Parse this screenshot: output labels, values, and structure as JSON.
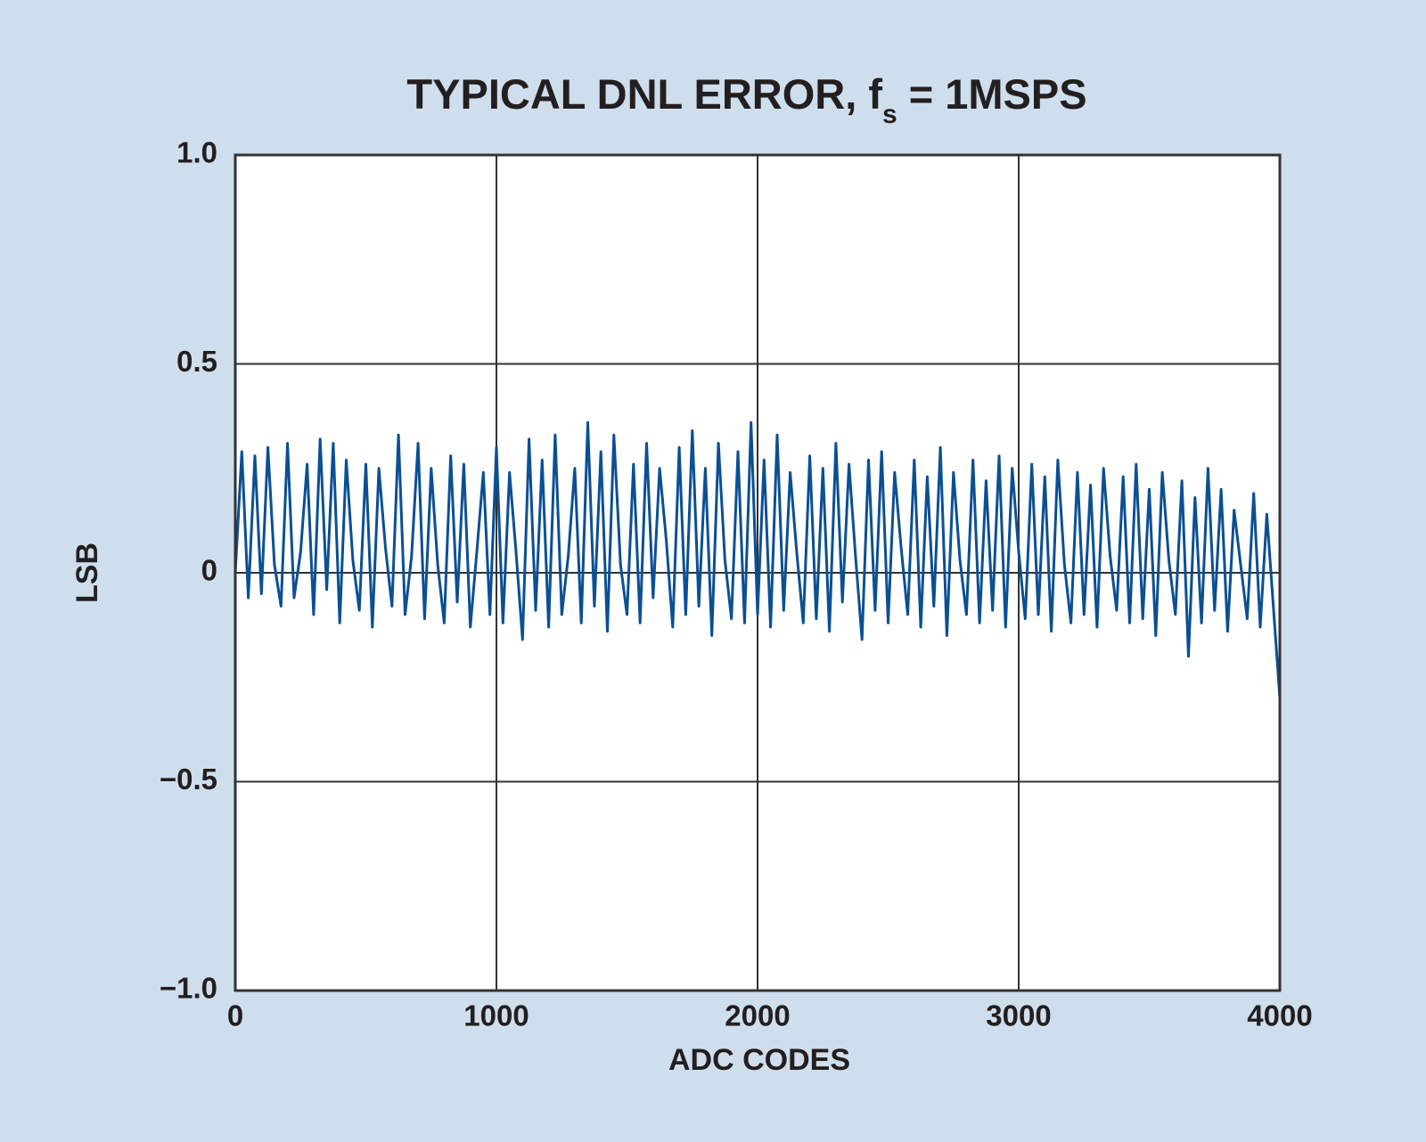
{
  "chart_data": {
    "type": "line",
    "title_parts": [
      "TYPICAL DNL ERROR, f",
      "s",
      " = 1MSPS"
    ],
    "x_label": "ADC CODES",
    "y_label": "LSB",
    "xlim": [
      0,
      4000
    ],
    "xticks": [
      0,
      1000,
      2000,
      3000,
      4000
    ],
    "ylim": [
      -1,
      1
    ],
    "yticks": [
      {
        "value": -1,
        "label": "−1.0"
      },
      {
        "value": -0.5,
        "label": "−0.5"
      },
      0,
      0.5,
      {
        "value": 1,
        "label": "1.0"
      }
    ],
    "grid": true,
    "series": [
      {
        "color": "#0b4f94",
        "x": [
          0,
          25,
          50,
          75,
          100,
          125,
          150,
          175,
          200,
          225,
          250,
          275,
          300,
          325,
          350,
          375,
          400,
          425,
          450,
          475,
          500,
          525,
          550,
          575,
          600,
          625,
          650,
          675,
          700,
          725,
          750,
          775,
          800,
          825,
          850,
          875,
          900,
          925,
          950,
          975,
          1000,
          1025,
          1050,
          1075,
          1100,
          1125,
          1150,
          1175,
          1200,
          1225,
          1250,
          1275,
          1300,
          1325,
          1350,
          1375,
          1400,
          1425,
          1450,
          1475,
          1500,
          1525,
          1550,
          1575,
          1600,
          1625,
          1650,
          1675,
          1700,
          1725,
          1750,
          1775,
          1800,
          1825,
          1850,
          1875,
          1900,
          1925,
          1950,
          1975,
          2000,
          2025,
          2050,
          2075,
          2100,
          2125,
          2150,
          2175,
          2200,
          2225,
          2250,
          2275,
          2300,
          2325,
          2350,
          2375,
          2400,
          2425,
          2450,
          2475,
          2500,
          2525,
          2550,
          2575,
          2600,
          2625,
          2650,
          2675,
          2700,
          2725,
          2750,
          2775,
          2800,
          2825,
          2850,
          2875,
          2900,
          2925,
          2950,
          2975,
          3000,
          3025,
          3050,
          3075,
          3100,
          3125,
          3150,
          3175,
          3200,
          3225,
          3250,
          3275,
          3300,
          3325,
          3350,
          3375,
          3400,
          3425,
          3450,
          3475,
          3500,
          3525,
          3550,
          3575,
          3600,
          3625,
          3650,
          3675,
          3700,
          3725,
          3750,
          3775,
          3800,
          3825,
          3850,
          3875,
          3900,
          3925,
          3950,
          3975,
          4000
        ],
        "values": [
          0.0,
          0.29,
          -0.06,
          0.28,
          -0.05,
          0.3,
          0.02,
          -0.08,
          0.31,
          -0.06,
          0.05,
          0.26,
          -0.1,
          0.32,
          -0.04,
          0.31,
          -0.12,
          0.27,
          0.03,
          -0.09,
          0.26,
          -0.13,
          0.25,
          0.06,
          -0.08,
          0.33,
          -0.1,
          0.04,
          0.31,
          -0.11,
          0.25,
          0.02,
          -0.12,
          0.28,
          -0.07,
          0.26,
          -0.13,
          0.05,
          0.24,
          -0.1,
          0.3,
          -0.12,
          0.24,
          0.05,
          -0.16,
          0.32,
          -0.09,
          0.27,
          -0.13,
          0.33,
          -0.1,
          0.04,
          0.25,
          -0.12,
          0.36,
          -0.08,
          0.29,
          -0.14,
          0.33,
          0.02,
          -0.1,
          0.26,
          -0.12,
          0.31,
          -0.06,
          0.25,
          0.08,
          -0.13,
          0.3,
          -0.1,
          0.34,
          -0.08,
          0.25,
          -0.15,
          0.31,
          0.03,
          -0.11,
          0.29,
          -0.12,
          0.36,
          -0.1,
          0.27,
          -0.13,
          0.33,
          -0.09,
          0.24,
          0.05,
          -0.12,
          0.28,
          -0.11,
          0.25,
          -0.14,
          0.31,
          -0.07,
          0.26,
          0.04,
          -0.16,
          0.27,
          -0.09,
          0.29,
          -0.12,
          0.24,
          0.06,
          -0.1,
          0.27,
          -0.13,
          0.23,
          -0.08,
          0.3,
          -0.15,
          0.24,
          0.03,
          -0.1,
          0.27,
          -0.12,
          0.22,
          -0.09,
          0.28,
          -0.13,
          0.25,
          0.05,
          -0.11,
          0.26,
          -0.1,
          0.23,
          -0.14,
          0.27,
          0.02,
          -0.12,
          0.24,
          -0.1,
          0.21,
          -0.13,
          0.25,
          0.04,
          -0.09,
          0.23,
          -0.12,
          0.26,
          -0.11,
          0.2,
          -0.15,
          0.24,
          0.03,
          -0.1,
          0.22,
          -0.2,
          0.18,
          -0.12,
          0.25,
          -0.09,
          0.2,
          -0.14,
          0.15,
          0.02,
          -0.11,
          0.19,
          -0.13,
          0.14,
          -0.08,
          -0.3
        ]
      }
    ]
  }
}
